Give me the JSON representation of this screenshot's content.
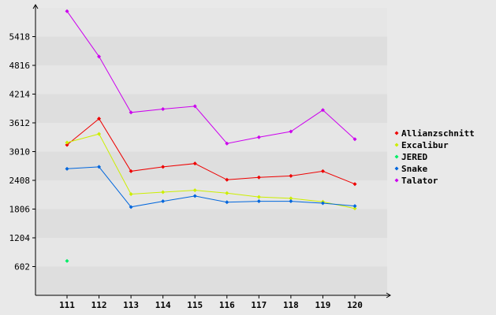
{
  "chart_data": {
    "type": "line",
    "categories": [
      "111",
      "112",
      "113",
      "114",
      "115",
      "116",
      "117",
      "118",
      "119",
      "120"
    ],
    "y_ticks": [
      "602",
      "1204",
      "1806",
      "2408",
      "3010",
      "3612",
      "4214",
      "4816",
      "5418"
    ],
    "ylim": [
      0,
      6020
    ],
    "grid": "horizontal alternating bands",
    "legend_position": "right",
    "background": "#e9e9e9",
    "plot_band_colors": [
      "#dedede",
      "#e6e6e6"
    ],
    "series": [
      {
        "name": "Allianzschnitt",
        "color": "#ee0000",
        "values": [
          3150,
          3700,
          2600,
          2690,
          2760,
          2420,
          2470,
          2500,
          2600,
          2330
        ]
      },
      {
        "name": "Excalibur",
        "color": "#ccee00",
        "values": [
          3200,
          3380,
          2120,
          2160,
          2200,
          2140,
          2060,
          2030,
          1960,
          1820
        ]
      },
      {
        "name": "JERED",
        "color": "#00ee66",
        "values": [
          720,
          null,
          null,
          null,
          null,
          null,
          null,
          null,
          null,
          null
        ]
      },
      {
        "name": "Snake",
        "color": "#0066dd",
        "values": [
          2650,
          2690,
          1850,
          1970,
          2080,
          1950,
          1970,
          1970,
          1930,
          1870
        ]
      },
      {
        "name": "Talator",
        "color": "#cc00ee",
        "values": [
          5950,
          5000,
          3830,
          3900,
          3960,
          3180,
          3310,
          3430,
          3880,
          3270
        ]
      }
    ]
  }
}
